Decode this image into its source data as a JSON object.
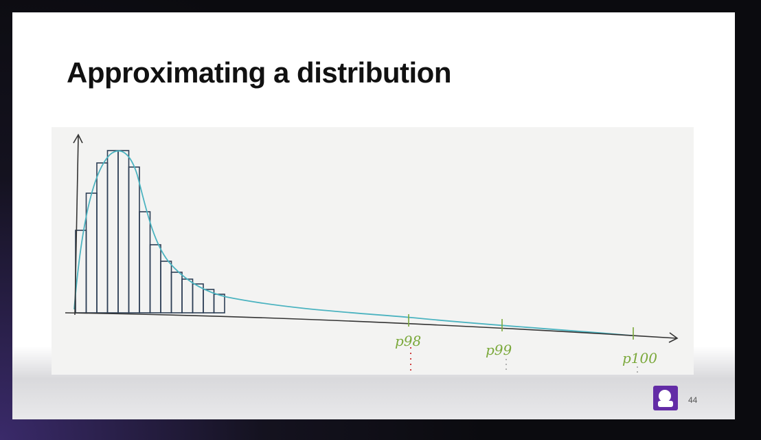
{
  "slide": {
    "title": "Approximating a distribution",
    "markers": [
      {
        "label": "p98"
      },
      {
        "label": "p99"
      },
      {
        "label": "p100"
      }
    ],
    "page_number": "44"
  }
}
